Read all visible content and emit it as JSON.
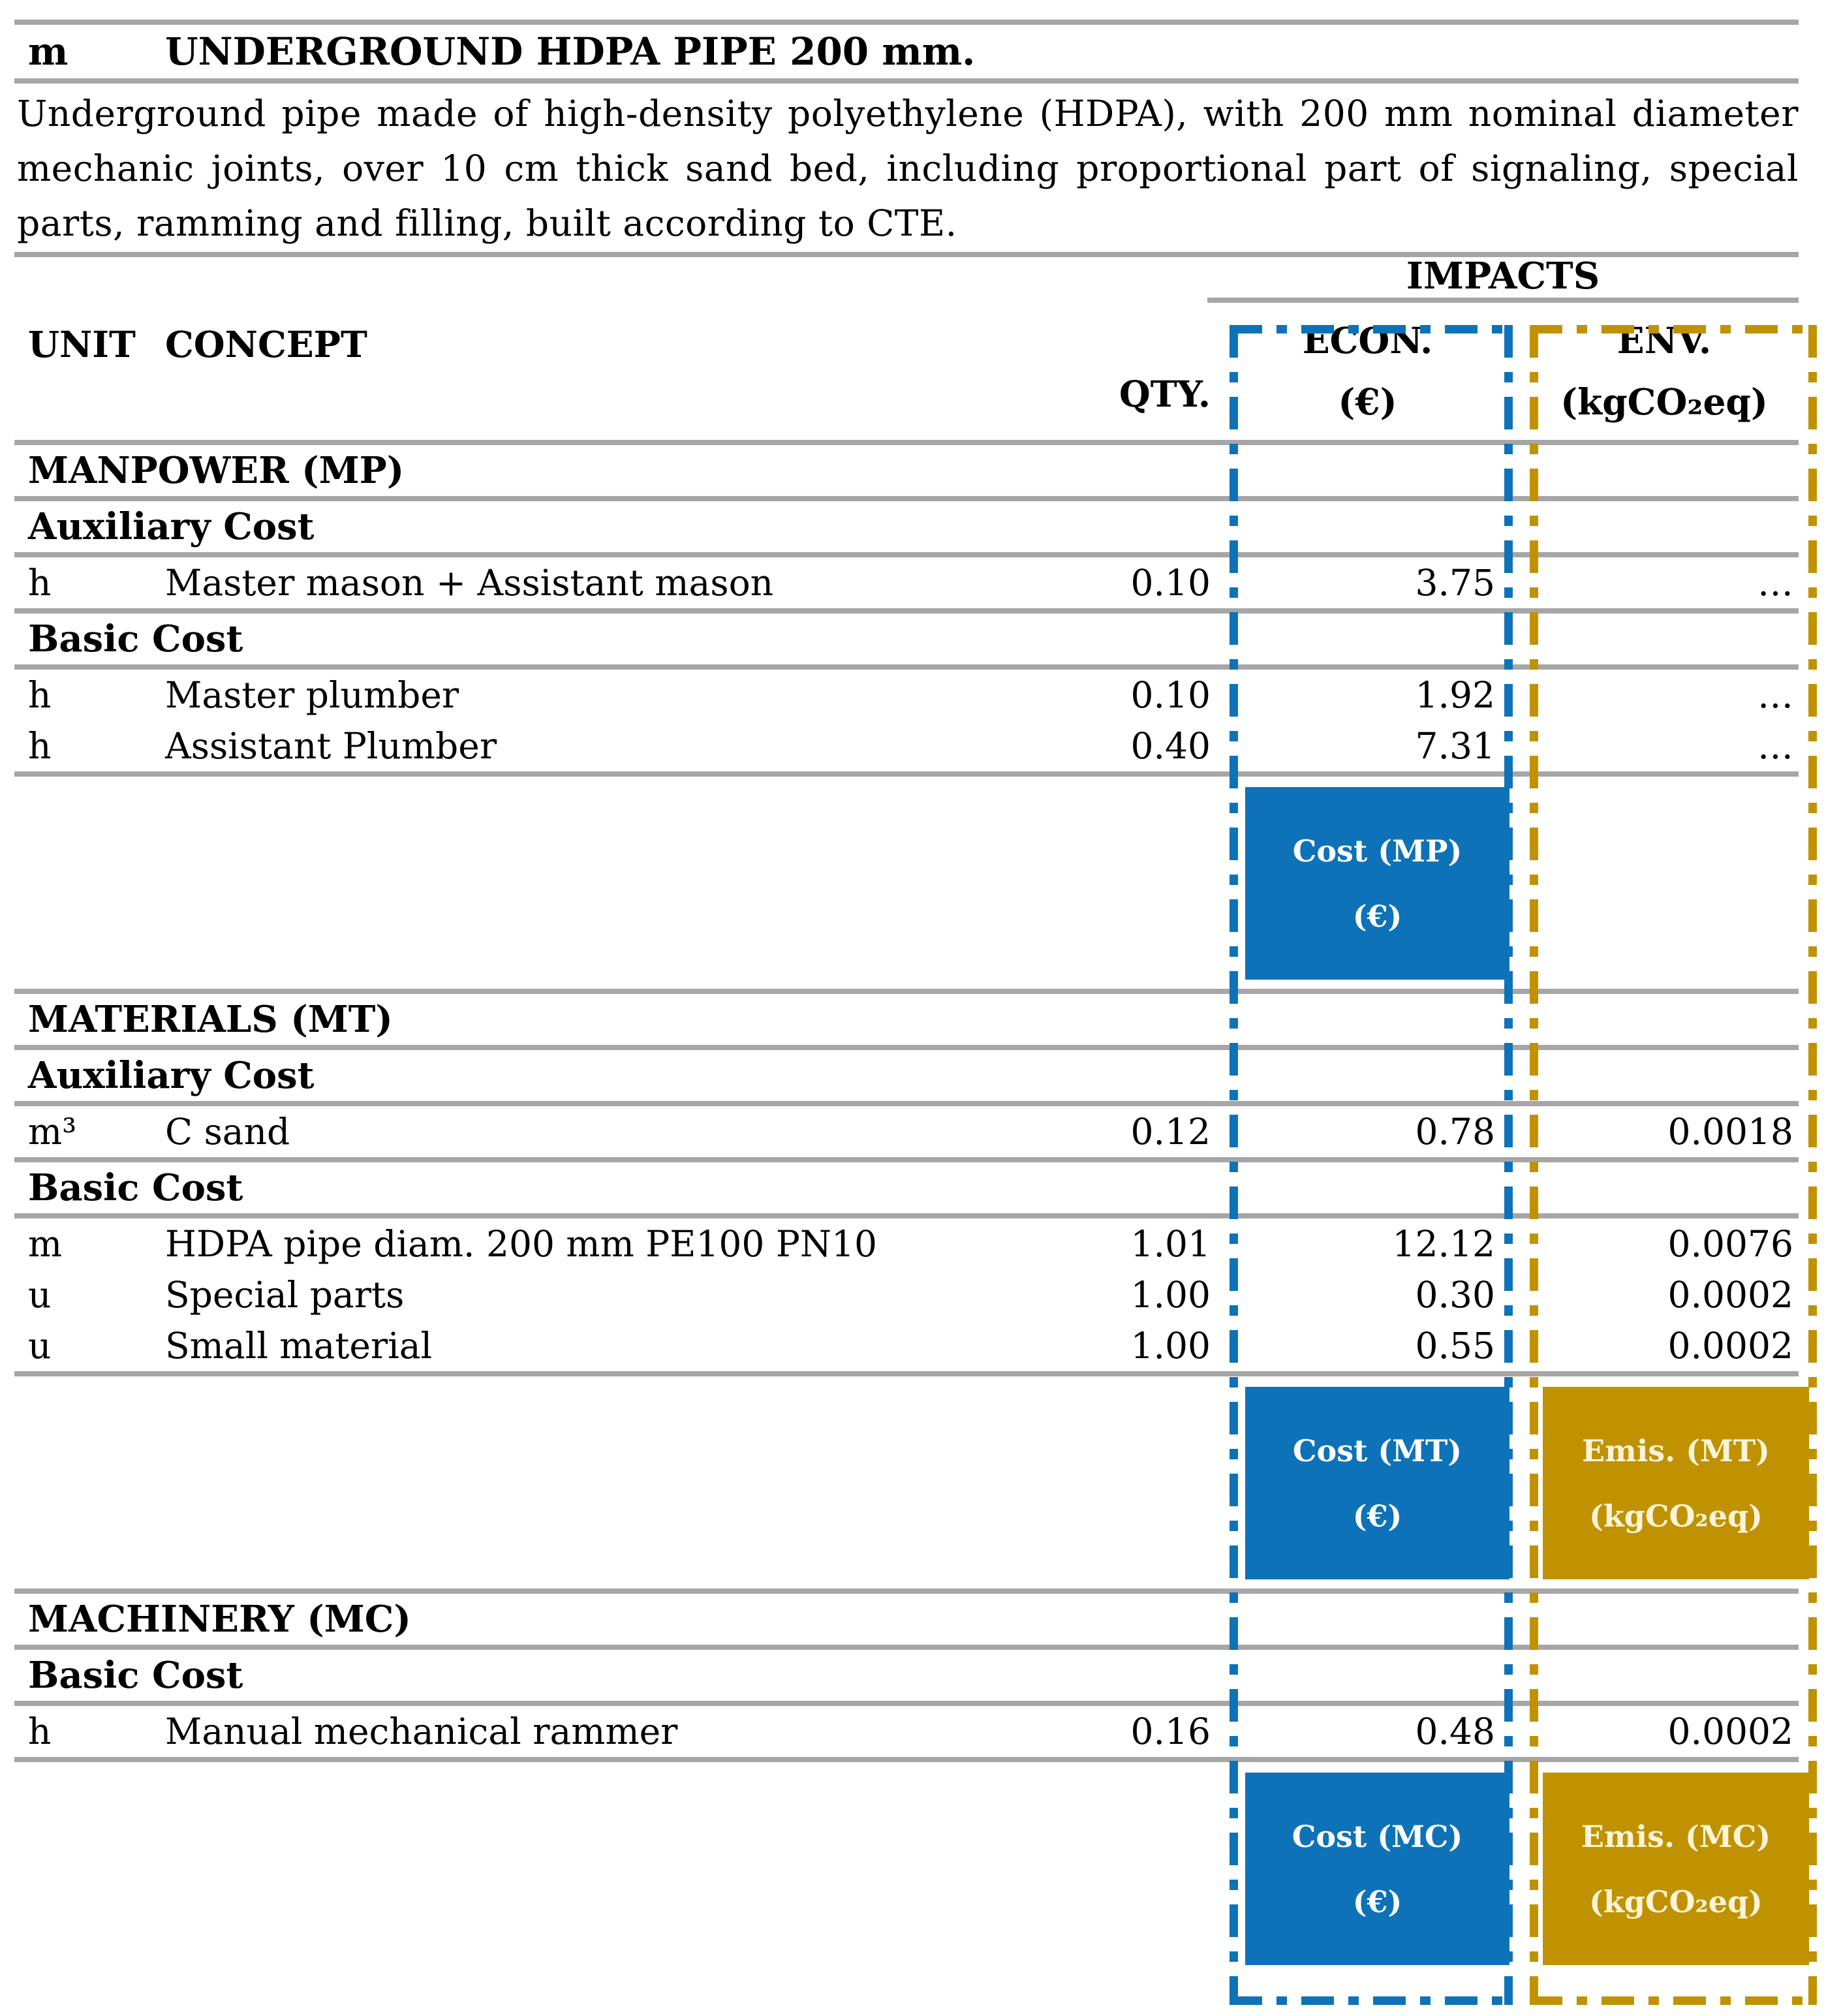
{
  "header": {
    "unit_symbol": "m",
    "title": "UNDERGROUND HDPA PIPE 200 mm."
  },
  "description": "Underground pipe made of high-density polyethylene (HDPA), with 200 mm nominal diameter mechanic joints, over 10 cm thick sand bed, including proportional part of signaling, special parts, ramming and filling, built according to CTE.",
  "table": {
    "impacts_label": "IMPACTS",
    "columns": {
      "unit": "UNIT",
      "concept": "CONCEPT",
      "qty": "QTY.",
      "econ_line1": "ECON.",
      "econ_line2": "(€)",
      "env_line1": "ENV.",
      "env_line2": "(kgCO₂eq)"
    },
    "sections": [
      {
        "title": "MANPOWER (MP)",
        "groups": [
          {
            "label": "Auxiliary Cost",
            "rows": [
              {
                "unit": "h",
                "concept": "Master mason + Assistant mason",
                "qty": "0.10",
                "econ": "3.75",
                "env": "…"
              }
            ]
          },
          {
            "label": "Basic Cost",
            "rows": [
              {
                "unit": "h",
                "concept": "Master plumber",
                "qty": "0.10",
                "econ": "1.92",
                "env": "…"
              },
              {
                "unit": "h",
                "concept": "Assistant Plumber",
                "qty": "0.40",
                "econ": "7.31",
                "env": "…"
              }
            ]
          }
        ],
        "summary": {
          "econ": [
            "Cost (MP)",
            "(€)"
          ],
          "env": null
        }
      },
      {
        "title": "MATERIALS (MT)",
        "groups": [
          {
            "label": "Auxiliary Cost",
            "rows": [
              {
                "unit": "m³",
                "concept": "C sand",
                "qty": "0.12",
                "econ": "0.78",
                "env": "0.0018"
              }
            ]
          },
          {
            "label": "Basic Cost",
            "rows": [
              {
                "unit": "m",
                "concept": "HDPA pipe diam. 200 mm PE100 PN10",
                "qty": "1.01",
                "econ": "12.12",
                "env": "0.0076"
              },
              {
                "unit": "u",
                "concept": "Special parts",
                "qty": "1.00",
                "econ": "0.30",
                "env": "0.0002"
              },
              {
                "unit": "u",
                "concept": "Small material",
                "qty": "1.00",
                "econ": "0.55",
                "env": "0.0002"
              }
            ]
          }
        ],
        "summary": {
          "econ": [
            "Cost (MT)",
            "(€)"
          ],
          "env": [
            "Emis. (MT)",
            "(kgCO₂eq)"
          ]
        }
      },
      {
        "title": "MACHINERY (MC)",
        "groups": [
          {
            "label": "Basic Cost",
            "rows": [
              {
                "unit": "h",
                "concept": "Manual mechanical rammer",
                "qty": "0.16",
                "econ": "0.48",
                "env": "0.0002"
              }
            ]
          }
        ],
        "summary": {
          "econ": [
            "Cost (MC)",
            "(€)"
          ],
          "env": [
            "Emis. (MC)",
            "(kgCO₂eq)"
          ]
        }
      }
    ]
  },
  "colors": {
    "econ_accent": "#0e72b8",
    "env_accent": "#c09200",
    "rule_gray": "#a6a6a6"
  }
}
